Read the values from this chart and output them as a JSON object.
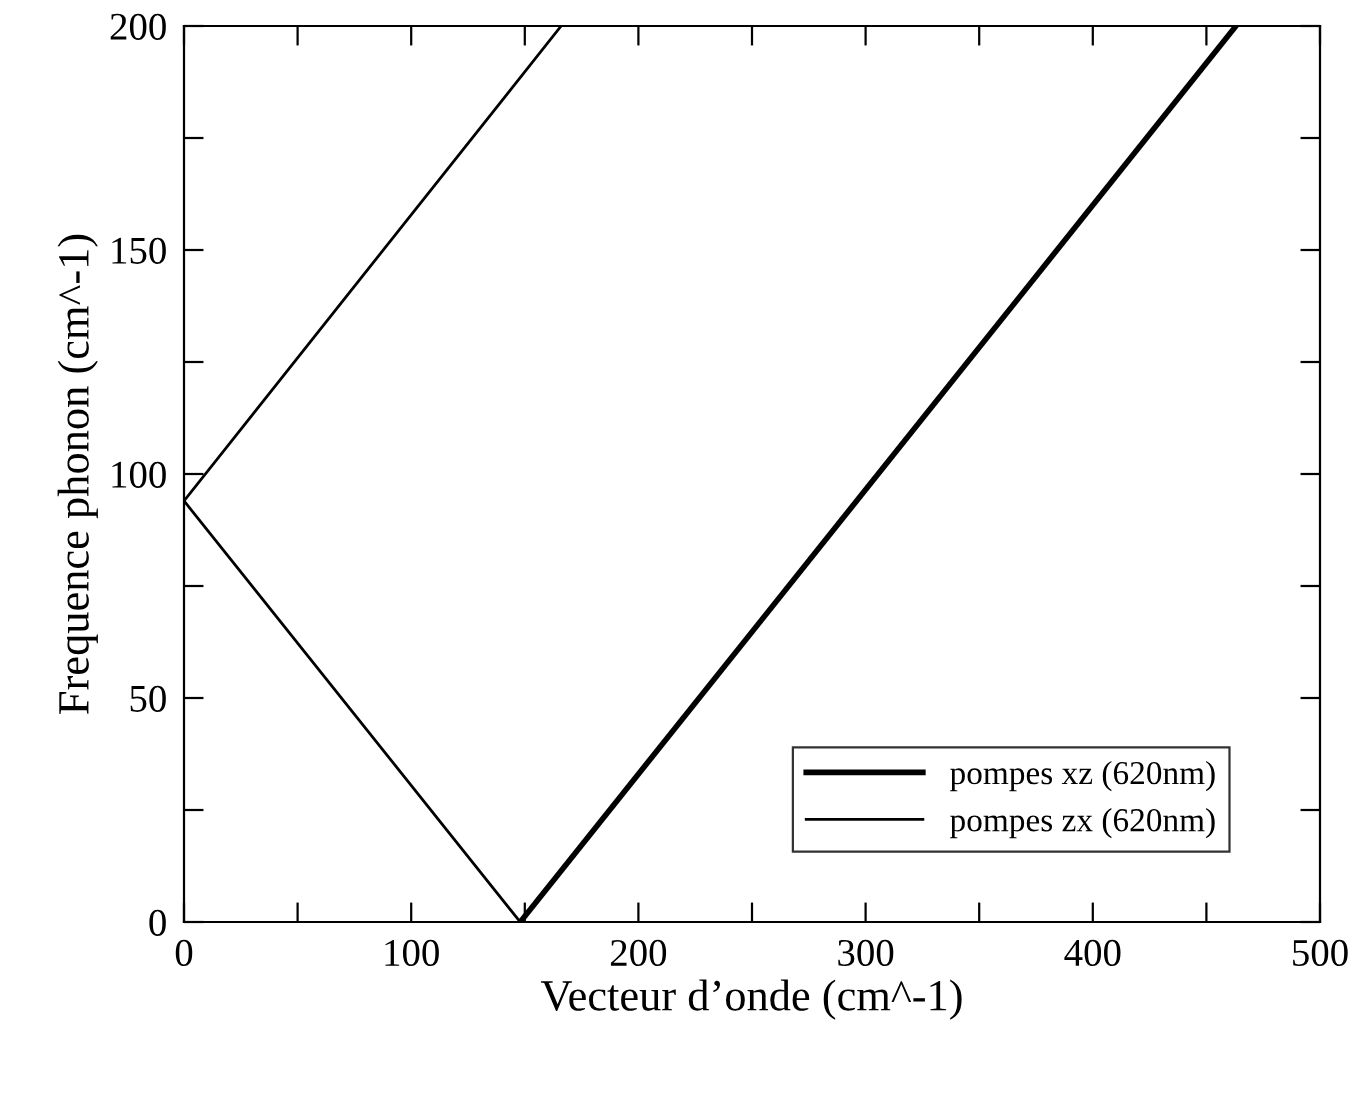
{
  "chart_data": {
    "type": "line",
    "xlabel": "Vecteur d’onde (cm^-1)",
    "ylabel": "Frequence phonon (cm^-1)",
    "xlim": [
      0,
      500
    ],
    "ylim": [
      0,
      200
    ],
    "xticks": [
      0,
      {
        "value": 50,
        "label": null
      },
      100,
      {
        "value": 150,
        "label": null
      },
      200,
      {
        "value": 250,
        "label": null
      },
      300,
      {
        "value": 350,
        "label": null
      },
      400,
      {
        "value": 450,
        "label": null
      },
      500
    ],
    "yticks": [
      0,
      {
        "value": 25,
        "label": null
      },
      50,
      {
        "value": 75,
        "label": null
      },
      100,
      {
        "value": 125,
        "label": null
      },
      150,
      {
        "value": 175,
        "label": null
      },
      200
    ],
    "legend": "bottom right",
    "grid": false,
    "marker": "none",
    "series": [
      {
        "name": "pompes xz (620nm)",
        "color": "#000000",
        "x": [
          148,
          463
        ],
        "values": [
          0,
          200
        ]
      },
      {
        "name": "pompes zx (620nm)",
        "color": "#000000",
        "x": [
          166,
          0,
          148
        ],
        "values": [
          200,
          94,
          0
        ]
      }
    ]
  }
}
